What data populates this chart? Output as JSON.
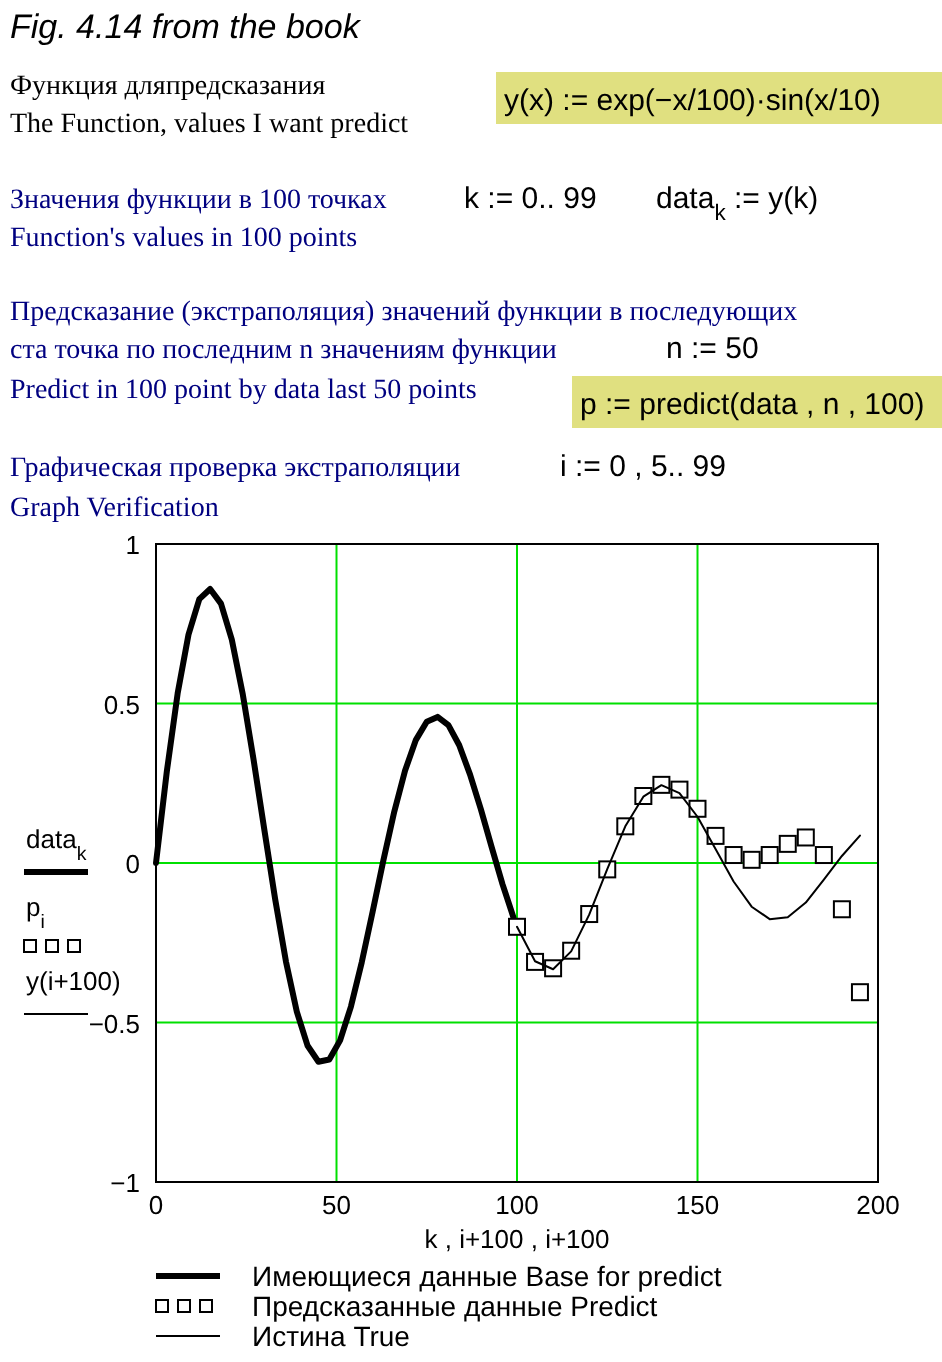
{
  "chart_data": {
    "type": "line",
    "title": "Fig. 4.14 from the book",
    "annotations": [
      "Функция дляпредсказания",
      "The Function, values I want predict",
      "y(x) := exp(−x/100)·sin(x/10)",
      "Значения функции в 100 точках",
      "k := 0.. 99",
      "data$_{k}$ := y(k)",
      "Function's values in 100 points",
      "Предсказание (экстраполяция) значений функции в последующих",
      "ста точка по последним n значениям функции",
      "n := 50",
      "Predict in 100 point by data last 50 points",
      "p := predict(data , n , 100)",
      "Графическая проверка экстраполяции",
      "i := 0 , 5.. 99",
      "Graph Verification"
    ],
    "xlabel": "k , i+100 , i+100",
    "ylabel": "data$_{k}$ p$_{i}$ y(i+100)",
    "xlim": [
      0,
      200
    ],
    "xticks": [
      0,
      50,
      100,
      150,
      200
    ],
    "ylim": [
      -1,
      1
    ],
    "yticks": [
      {
        "value": -1,
        "label": "−1"
      },
      {
        "value": -0.5,
        "label": "−0.5"
      },
      0,
      0.5,
      1
    ],
    "grid": true,
    "legend": "bottom",
    "series": [
      {
        "name": "Имеющиеся данные Base for predict",
        "type": "line",
        "color": "#000000",
        "x": [
          0,
          3,
          6,
          9,
          12,
          15,
          18,
          21,
          24,
          27,
          30,
          33,
          36,
          39,
          42,
          45,
          48,
          51,
          54,
          57,
          60,
          63,
          66,
          69,
          72,
          75,
          78,
          81,
          84,
          87,
          90,
          93,
          96,
          99
        ],
        "values": [
          0,
          0.287,
          0.532,
          0.716,
          0.827,
          0.859,
          0.813,
          0.7,
          0.531,
          0.326,
          0.105,
          -0.113,
          -0.309,
          -0.466,
          -0.573,
          -0.623,
          -0.616,
          -0.556,
          -0.45,
          -0.311,
          -0.153,
          0.009,
          0.161,
          0.29,
          0.386,
          0.443,
          0.458,
          0.432,
          0.369,
          0.277,
          0.168,
          0.049,
          -0.067,
          -0.17
        ]
      },
      {
        "name": "Предсказанные данные Predict",
        "type": "scatter",
        "marker": "square",
        "color": "#000000",
        "x": [
          100,
          105,
          110,
          115,
          120,
          125,
          130,
          135,
          140,
          145,
          150,
          155,
          160,
          165,
          170,
          175,
          180,
          185,
          190,
          195
        ],
        "values": [
          -0.2,
          -0.31,
          -0.33,
          -0.275,
          -0.16,
          -0.02,
          0.115,
          0.21,
          0.245,
          0.23,
          0.17,
          0.085,
          0.025,
          0.01,
          0.025,
          0.06,
          0.08,
          0.025,
          -0.145,
          -0.405
        ]
      },
      {
        "name": "Истина True",
        "type": "line",
        "color": "#000000",
        "x": [
          100,
          105,
          110,
          115,
          120,
          125,
          130,
          135,
          140,
          145,
          150,
          155,
          160,
          165,
          170,
          175,
          180,
          185,
          190,
          195
        ],
        "values": [
          -0.2,
          -0.308,
          -0.333,
          -0.277,
          -0.162,
          -0.019,
          0.115,
          0.208,
          0.244,
          0.219,
          0.145,
          0.044,
          -0.058,
          -0.137,
          -0.176,
          -0.17,
          -0.124,
          -0.052,
          0.022,
          0.086
        ]
      }
    ]
  }
}
